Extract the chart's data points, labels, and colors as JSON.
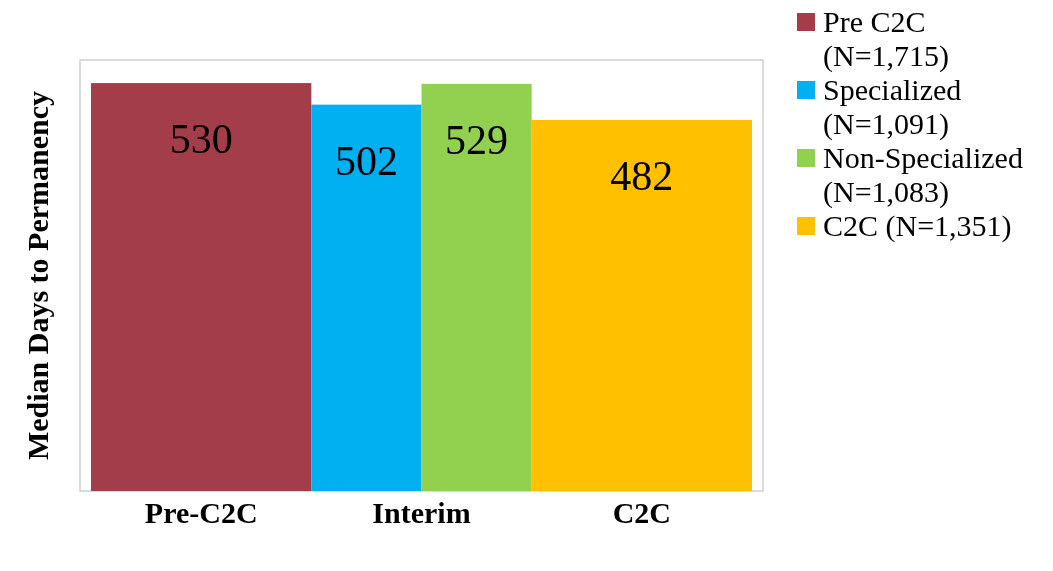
{
  "chart_data": {
    "type": "bar",
    "ylabel": "Median Days to Permanency",
    "categories": [
      "Pre-C2C",
      "Interim",
      "C2C"
    ],
    "series": [
      {
        "name": "Pre C2C (N=1,715)",
        "color": "#a43d4a",
        "values": [
          530,
          null,
          null
        ]
      },
      {
        "name": "Specialized (N=1,091)",
        "color": "#00b0f0",
        "values": [
          null,
          502,
          null
        ]
      },
      {
        "name": "Non-Specialized (N=1,083)",
        "color": "#92d050",
        "values": [
          null,
          529,
          null
        ]
      },
      {
        "name": "C2C (N=1,351)",
        "color": "#ffc000",
        "values": [
          null,
          null,
          482
        ]
      }
    ],
    "ylim": [
      0,
      560
    ],
    "tick_labels": "x",
    "data_labels": true,
    "legend": "right"
  }
}
